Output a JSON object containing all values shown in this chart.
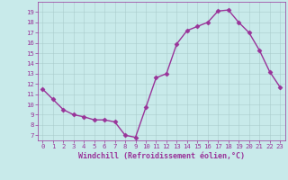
{
  "x": [
    0,
    1,
    2,
    3,
    4,
    5,
    6,
    7,
    8,
    9,
    10,
    11,
    12,
    13,
    14,
    15,
    16,
    17,
    18,
    19,
    20,
    21,
    22,
    23
  ],
  "y": [
    11.5,
    10.5,
    9.5,
    9.0,
    8.8,
    8.5,
    8.5,
    8.3,
    7.0,
    6.8,
    9.7,
    12.6,
    13.0,
    15.9,
    17.2,
    17.6,
    18.0,
    19.1,
    19.2,
    18.0,
    17.0,
    15.3,
    13.2,
    11.7
  ],
  "line_color": "#993399",
  "marker": "D",
  "markersize": 2.5,
  "linewidth": 1.0,
  "bg_color": "#c8eaea",
  "grid_color": "#aacccc",
  "xlabel": "Windchill (Refroidissement éolien,°C)",
  "ylim": [
    6.5,
    20.0
  ],
  "xlim": [
    -0.5,
    23.5
  ],
  "yticks": [
    7,
    8,
    9,
    10,
    11,
    12,
    13,
    14,
    15,
    16,
    17,
    18,
    19
  ],
  "xticks": [
    0,
    1,
    2,
    3,
    4,
    5,
    6,
    7,
    8,
    9,
    10,
    11,
    12,
    13,
    14,
    15,
    16,
    17,
    18,
    19,
    20,
    21,
    22,
    23
  ],
  "tick_fontsize": 5.2,
  "xlabel_fontsize": 6.0,
  "axis_color": "#993399"
}
